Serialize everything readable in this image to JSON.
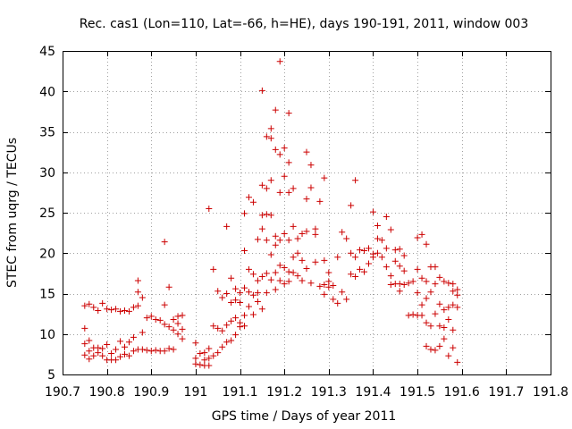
{
  "chart_data": {
    "type": "scatter",
    "title": "Rec. cas1 (Lon=110, Lat=-66, h=HE), days 190-191, 2011, window 003",
    "xlabel": "GPS time / Days of year 2011",
    "ylabel": "STEC from uqrg / TECUs",
    "xlim": [
      190.7,
      191.8
    ],
    "ylim": [
      5,
      45
    ],
    "xticks": [
      190.7,
      190.8,
      190.9,
      191,
      191.1,
      191.2,
      191.3,
      191.4,
      191.5,
      191.6,
      191.7,
      191.8
    ],
    "xtick_labels": [
      "190.7",
      "190.8",
      "190.9",
      "191",
      "191.1",
      "191.2",
      "191.3",
      "191.4",
      "191.5",
      "191.6",
      "191.7",
      "191.8"
    ],
    "yticks": [
      5,
      10,
      15,
      20,
      25,
      30,
      35,
      40,
      45
    ],
    "ytick_labels": [
      "5",
      "10",
      "15",
      "20",
      "25",
      "30",
      "35",
      "40",
      "45"
    ],
    "grid": true,
    "marker": "plus",
    "color": "#cc0000",
    "points": [
      [
        190.75,
        13.5
      ],
      [
        190.75,
        10.7
      ],
      [
        190.75,
        8.8
      ],
      [
        190.75,
        7.4
      ],
      [
        190.76,
        13.7
      ],
      [
        190.76,
        9.2
      ],
      [
        190.76,
        7.9
      ],
      [
        190.76,
        6.9
      ],
      [
        190.77,
        13.3
      ],
      [
        190.77,
        8.3
      ],
      [
        190.77,
        7.3
      ],
      [
        190.78,
        12.9
      ],
      [
        190.78,
        8.3
      ],
      [
        190.78,
        7.7
      ],
      [
        190.79,
        13.8
      ],
      [
        190.79,
        8.2
      ],
      [
        190.79,
        7.3
      ],
      [
        190.8,
        13.1
      ],
      [
        190.8,
        8.7
      ],
      [
        190.8,
        6.8
      ],
      [
        190.81,
        13.0
      ],
      [
        190.81,
        7.6
      ],
      [
        190.81,
        6.8
      ],
      [
        190.82,
        13.1
      ],
      [
        190.82,
        8.1
      ],
      [
        190.82,
        6.8
      ],
      [
        190.83,
        12.8
      ],
      [
        190.83,
        9.1
      ],
      [
        190.83,
        7.2
      ],
      [
        190.84,
        12.9
      ],
      [
        190.84,
        8.4
      ],
      [
        190.84,
        7.5
      ],
      [
        190.85,
        12.8
      ],
      [
        190.85,
        9.0
      ],
      [
        190.85,
        7.3
      ],
      [
        190.86,
        13.3
      ],
      [
        190.86,
        9.6
      ],
      [
        190.86,
        7.9
      ],
      [
        190.87,
        16.6
      ],
      [
        190.87,
        15.2
      ],
      [
        190.87,
        13.5
      ],
      [
        190.87,
        8.1
      ],
      [
        190.88,
        14.5
      ],
      [
        190.88,
        10.2
      ],
      [
        190.88,
        8.1
      ],
      [
        190.89,
        12.0
      ],
      [
        190.89,
        8.0
      ],
      [
        190.9,
        12.2
      ],
      [
        190.9,
        7.9
      ],
      [
        190.91,
        11.8
      ],
      [
        190.91,
        8.0
      ],
      [
        190.92,
        11.7
      ],
      [
        190.92,
        7.9
      ],
      [
        190.93,
        21.4
      ],
      [
        190.93,
        13.6
      ],
      [
        190.93,
        11.2
      ],
      [
        190.93,
        7.9
      ],
      [
        190.94,
        15.8
      ],
      [
        190.94,
        10.9
      ],
      [
        190.94,
        8.2
      ],
      [
        190.95,
        11.8
      ],
      [
        190.95,
        10.5
      ],
      [
        190.95,
        8.1
      ],
      [
        190.96,
        12.2
      ],
      [
        190.96,
        11.3
      ],
      [
        190.96,
        10.0
      ],
      [
        190.97,
        12.3
      ],
      [
        190.97,
        10.6
      ],
      [
        190.97,
        9.4
      ],
      [
        191.0,
        8.9
      ],
      [
        191.0,
        7.0
      ],
      [
        191.0,
        6.3
      ],
      [
        191.01,
        7.6
      ],
      [
        191.01,
        6.2
      ],
      [
        191.02,
        7.7
      ],
      [
        191.02,
        6.8
      ],
      [
        191.02,
        6.1
      ],
      [
        191.03,
        25.5
      ],
      [
        191.03,
        8.2
      ],
      [
        191.03,
        7.0
      ],
      [
        191.03,
        6.1
      ],
      [
        191.04,
        18.0
      ],
      [
        191.04,
        11.0
      ],
      [
        191.04,
        7.3
      ],
      [
        191.05,
        15.3
      ],
      [
        191.05,
        10.7
      ],
      [
        191.05,
        7.7
      ],
      [
        191.06,
        14.5
      ],
      [
        191.06,
        10.4
      ],
      [
        191.06,
        8.4
      ],
      [
        191.07,
        23.3
      ],
      [
        191.07,
        15.0
      ],
      [
        191.07,
        11.1
      ],
      [
        191.07,
        9.0
      ],
      [
        191.08,
        16.9
      ],
      [
        191.08,
        13.9
      ],
      [
        191.08,
        11.6
      ],
      [
        191.08,
        9.2
      ],
      [
        191.09,
        15.6
      ],
      [
        191.09,
        14.2
      ],
      [
        191.09,
        12.0
      ],
      [
        191.09,
        9.9
      ],
      [
        191.1,
        15.1
      ],
      [
        191.1,
        13.9
      ],
      [
        191.1,
        11.4
      ],
      [
        191.1,
        10.9
      ],
      [
        191.11,
        24.9
      ],
      [
        191.11,
        20.3
      ],
      [
        191.11,
        15.7
      ],
      [
        191.11,
        12.3
      ],
      [
        191.11,
        11.0
      ],
      [
        191.12,
        26.9
      ],
      [
        191.12,
        18.0
      ],
      [
        191.12,
        15.2
      ],
      [
        191.12,
        13.4
      ],
      [
        191.13,
        26.3
      ],
      [
        191.13,
        17.4
      ],
      [
        191.13,
        14.8
      ],
      [
        191.13,
        12.4
      ],
      [
        191.14,
        21.7
      ],
      [
        191.14,
        16.6
      ],
      [
        191.14,
        15.1
      ],
      [
        191.14,
        14.0
      ],
      [
        191.15,
        40.1
      ],
      [
        191.15,
        28.4
      ],
      [
        191.15,
        24.7
      ],
      [
        191.15,
        23.0
      ],
      [
        191.15,
        17.1
      ],
      [
        191.15,
        13.1
      ],
      [
        191.16,
        34.4
      ],
      [
        191.16,
        28.0
      ],
      [
        191.16,
        24.8
      ],
      [
        191.16,
        21.6
      ],
      [
        191.16,
        17.5
      ],
      [
        191.16,
        15.1
      ],
      [
        191.17,
        35.4
      ],
      [
        191.17,
        34.2
      ],
      [
        191.17,
        29.0
      ],
      [
        191.17,
        24.7
      ],
      [
        191.17,
        19.8
      ],
      [
        191.17,
        16.7
      ],
      [
        191.18,
        37.7
      ],
      [
        191.18,
        32.8
      ],
      [
        191.18,
        22.1
      ],
      [
        191.18,
        21.0
      ],
      [
        191.18,
        17.6
      ],
      [
        191.18,
        15.5
      ],
      [
        191.19,
        43.7
      ],
      [
        191.19,
        32.2
      ],
      [
        191.19,
        27.5
      ],
      [
        191.19,
        21.6
      ],
      [
        191.19,
        18.5
      ],
      [
        191.19,
        16.6
      ],
      [
        191.2,
        33.0
      ],
      [
        191.2,
        29.5
      ],
      [
        191.2,
        22.4
      ],
      [
        191.2,
        18.2
      ],
      [
        191.2,
        16.2
      ],
      [
        191.21,
        37.3
      ],
      [
        191.21,
        31.2
      ],
      [
        191.21,
        27.5
      ],
      [
        191.21,
        21.6
      ],
      [
        191.21,
        17.7
      ],
      [
        191.21,
        16.5
      ],
      [
        191.22,
        28.0
      ],
      [
        191.22,
        23.3
      ],
      [
        191.22,
        19.5
      ],
      [
        191.22,
        17.6
      ],
      [
        191.23,
        21.8
      ],
      [
        191.23,
        20.0
      ],
      [
        191.23,
        17.2
      ],
      [
        191.24,
        22.4
      ],
      [
        191.24,
        19.1
      ],
      [
        191.24,
        16.6
      ],
      [
        191.25,
        32.5
      ],
      [
        191.25,
        26.7
      ],
      [
        191.25,
        22.7
      ],
      [
        191.25,
        18.1
      ],
      [
        191.26,
        30.9
      ],
      [
        191.26,
        28.1
      ],
      [
        191.26,
        16.3
      ],
      [
        191.27,
        23.0
      ],
      [
        191.27,
        22.3
      ],
      [
        191.27,
        18.9
      ],
      [
        191.28,
        26.4
      ],
      [
        191.28,
        15.9
      ],
      [
        191.29,
        29.3
      ],
      [
        191.29,
        19.1
      ],
      [
        191.29,
        16.1
      ],
      [
        191.29,
        14.9
      ],
      [
        191.3,
        17.6
      ],
      [
        191.3,
        16.5
      ],
      [
        191.3,
        15.8
      ],
      [
        191.31,
        16.0
      ],
      [
        191.31,
        14.3
      ],
      [
        191.32,
        19.5
      ],
      [
        191.32,
        13.8
      ],
      [
        191.33,
        22.6
      ],
      [
        191.33,
        15.2
      ],
      [
        191.34,
        21.8
      ],
      [
        191.34,
        14.3
      ],
      [
        191.35,
        25.9
      ],
      [
        191.35,
        20.0
      ],
      [
        191.35,
        17.4
      ],
      [
        191.36,
        29.0
      ],
      [
        191.36,
        19.5
      ],
      [
        191.36,
        17.1
      ],
      [
        191.37,
        20.4
      ],
      [
        191.37,
        18.0
      ],
      [
        191.38,
        20.3
      ],
      [
        191.38,
        17.7
      ],
      [
        191.39,
        20.6
      ],
      [
        191.39,
        18.7
      ],
      [
        191.4,
        25.1
      ],
      [
        191.4,
        19.9
      ],
      [
        191.4,
        19.5
      ],
      [
        191.41,
        23.4
      ],
      [
        191.41,
        21.8
      ],
      [
        191.41,
        20.0
      ],
      [
        191.42,
        21.6
      ],
      [
        191.42,
        19.5
      ],
      [
        191.43,
        24.5
      ],
      [
        191.43,
        20.6
      ],
      [
        191.43,
        18.3
      ],
      [
        191.44,
        22.9
      ],
      [
        191.44,
        17.2
      ],
      [
        191.44,
        16.1
      ],
      [
        191.45,
        20.4
      ],
      [
        191.45,
        19.0
      ],
      [
        191.45,
        16.2
      ],
      [
        191.46,
        20.5
      ],
      [
        191.46,
        18.4
      ],
      [
        191.46,
        16.2
      ],
      [
        191.46,
        15.3
      ],
      [
        191.47,
        19.7
      ],
      [
        191.47,
        17.8
      ],
      [
        191.47,
        16.1
      ],
      [
        191.48,
        16.3
      ],
      [
        191.48,
        12.3
      ],
      [
        191.49,
        16.5
      ],
      [
        191.49,
        12.4
      ],
      [
        191.5,
        21.9
      ],
      [
        191.5,
        18.0
      ],
      [
        191.5,
        15.1
      ],
      [
        191.5,
        12.3
      ],
      [
        191.51,
        22.3
      ],
      [
        191.51,
        16.9
      ],
      [
        191.51,
        13.6
      ],
      [
        191.51,
        12.3
      ],
      [
        191.52,
        21.1
      ],
      [
        191.52,
        16.5
      ],
      [
        191.52,
        14.4
      ],
      [
        191.52,
        11.4
      ],
      [
        191.52,
        8.5
      ],
      [
        191.53,
        18.3
      ],
      [
        191.53,
        15.2
      ],
      [
        191.53,
        11.0
      ],
      [
        191.53,
        8.1
      ],
      [
        191.54,
        18.3
      ],
      [
        191.54,
        16.2
      ],
      [
        191.54,
        12.5
      ],
      [
        191.54,
        8.0
      ],
      [
        191.55,
        17.0
      ],
      [
        191.55,
        13.7
      ],
      [
        191.55,
        11.0
      ],
      [
        191.55,
        8.5
      ],
      [
        191.56,
        16.5
      ],
      [
        191.56,
        13.0
      ],
      [
        191.56,
        10.8
      ],
      [
        191.56,
        9.4
      ],
      [
        191.57,
        16.3
      ],
      [
        191.57,
        13.3
      ],
      [
        191.57,
        11.8
      ],
      [
        191.57,
        7.3
      ],
      [
        191.58,
        16.2
      ],
      [
        191.58,
        15.3
      ],
      [
        191.58,
        13.6
      ],
      [
        191.58,
        10.5
      ],
      [
        191.58,
        8.3
      ],
      [
        191.59,
        15.5
      ],
      [
        191.59,
        14.8
      ],
      [
        191.59,
        13.3
      ],
      [
        191.59,
        6.5
      ]
    ]
  }
}
